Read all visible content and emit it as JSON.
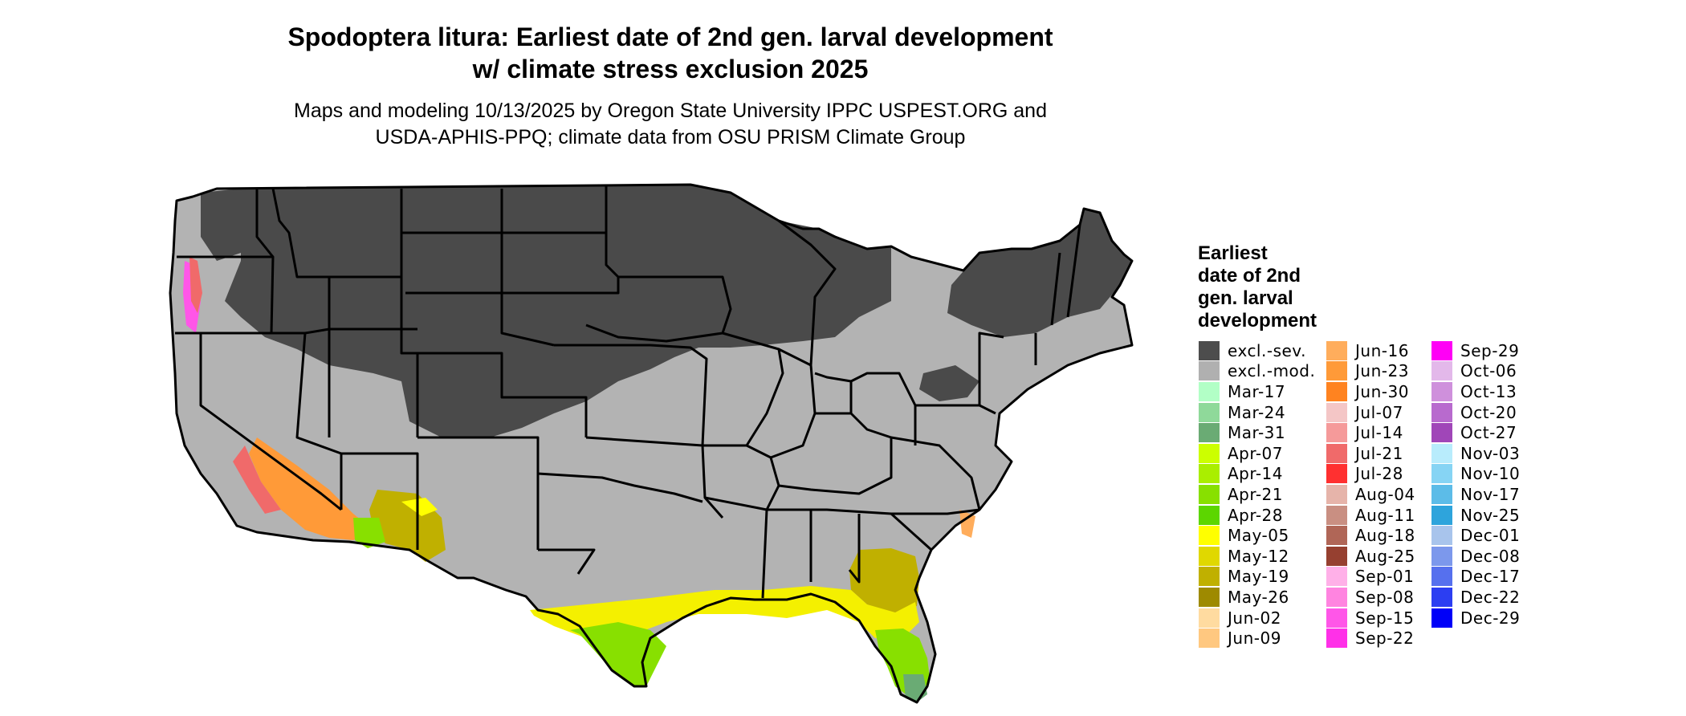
{
  "title": {
    "line1": "Spodoptera litura: Earliest date of 2nd gen. larval development",
    "line2": "w/ climate stress exclusion 2025"
  },
  "subtitle": {
    "line1": "Maps and modeling 10/13/2025 by Oregon State University IPPC USPEST.ORG and",
    "line2": "USDA-APHIS-PPQ; climate data from OSU PRISM Climate Group"
  },
  "legend": {
    "title": [
      "Earliest",
      "date of 2nd",
      "gen. larval",
      "development"
    ],
    "columns": [
      [
        {
          "label": "excl.-sev.",
          "color": "#4d4d4d"
        },
        {
          "label": "excl.-mod.",
          "color": "#b0b0b0"
        },
        {
          "label": "Mar-17",
          "color": "#b2ffc6"
        },
        {
          "label": "Mar-24",
          "color": "#8fd99a"
        },
        {
          "label": "Mar-31",
          "color": "#6aab74"
        },
        {
          "label": "Apr-07",
          "color": "#ccff00"
        },
        {
          "label": "Apr-14",
          "color": "#aaee00"
        },
        {
          "label": "Apr-21",
          "color": "#88e000"
        },
        {
          "label": "Apr-28",
          "color": "#5cd600"
        },
        {
          "label": "May-05",
          "color": "#ffff00"
        },
        {
          "label": "May-12",
          "color": "#e0d800"
        },
        {
          "label": "May-19",
          "color": "#c0b000"
        },
        {
          "label": "May-26",
          "color": "#9e8a00"
        },
        {
          "label": "Jun-02",
          "color": "#ffdba0"
        },
        {
          "label": "Jun-09",
          "color": "#ffc880"
        }
      ],
      [
        {
          "label": "Jun-16",
          "color": "#ffad5c"
        },
        {
          "label": "Jun-23",
          "color": "#ff9a38"
        },
        {
          "label": "Jun-30",
          "color": "#ff8320"
        },
        {
          "label": "Jul-07",
          "color": "#f4c6c6"
        },
        {
          "label": "Jul-14",
          "color": "#f59a9a"
        },
        {
          "label": "Jul-21",
          "color": "#f06a6a"
        },
        {
          "label": "Jul-28",
          "color": "#ff3030"
        },
        {
          "label": "Aug-04",
          "color": "#e6b4aa"
        },
        {
          "label": "Aug-11",
          "color": "#c98f82"
        },
        {
          "label": "Aug-18",
          "color": "#b06657"
        },
        {
          "label": "Aug-25",
          "color": "#964030"
        },
        {
          "label": "Sep-01",
          "color": "#ffb0e8"
        },
        {
          "label": "Sep-08",
          "color": "#ff84e0"
        },
        {
          "label": "Sep-15",
          "color": "#ff56e8"
        },
        {
          "label": "Sep-22",
          "color": "#ff30e8"
        }
      ],
      [
        {
          "label": "Sep-29",
          "color": "#ff00f6"
        },
        {
          "label": "Oct-06",
          "color": "#e3b8ea"
        },
        {
          "label": "Oct-13",
          "color": "#cf90dc"
        },
        {
          "label": "Oct-20",
          "color": "#b86ace"
        },
        {
          "label": "Oct-27",
          "color": "#a046b8"
        },
        {
          "label": "Nov-03",
          "color": "#b8ecfc"
        },
        {
          "label": "Nov-10",
          "color": "#86d4f4"
        },
        {
          "label": "Nov-17",
          "color": "#5cbce8"
        },
        {
          "label": "Nov-25",
          "color": "#2ea4dc"
        },
        {
          "label": "Dec-01",
          "color": "#a8c4ec"
        },
        {
          "label": "Dec-08",
          "color": "#7c98ec"
        },
        {
          "label": "Dec-17",
          "color": "#5670ee"
        },
        {
          "label": "Dec-22",
          "color": "#2c3ef2"
        },
        {
          "label": "Dec-29",
          "color": "#0000f8"
        }
      ]
    ]
  }
}
